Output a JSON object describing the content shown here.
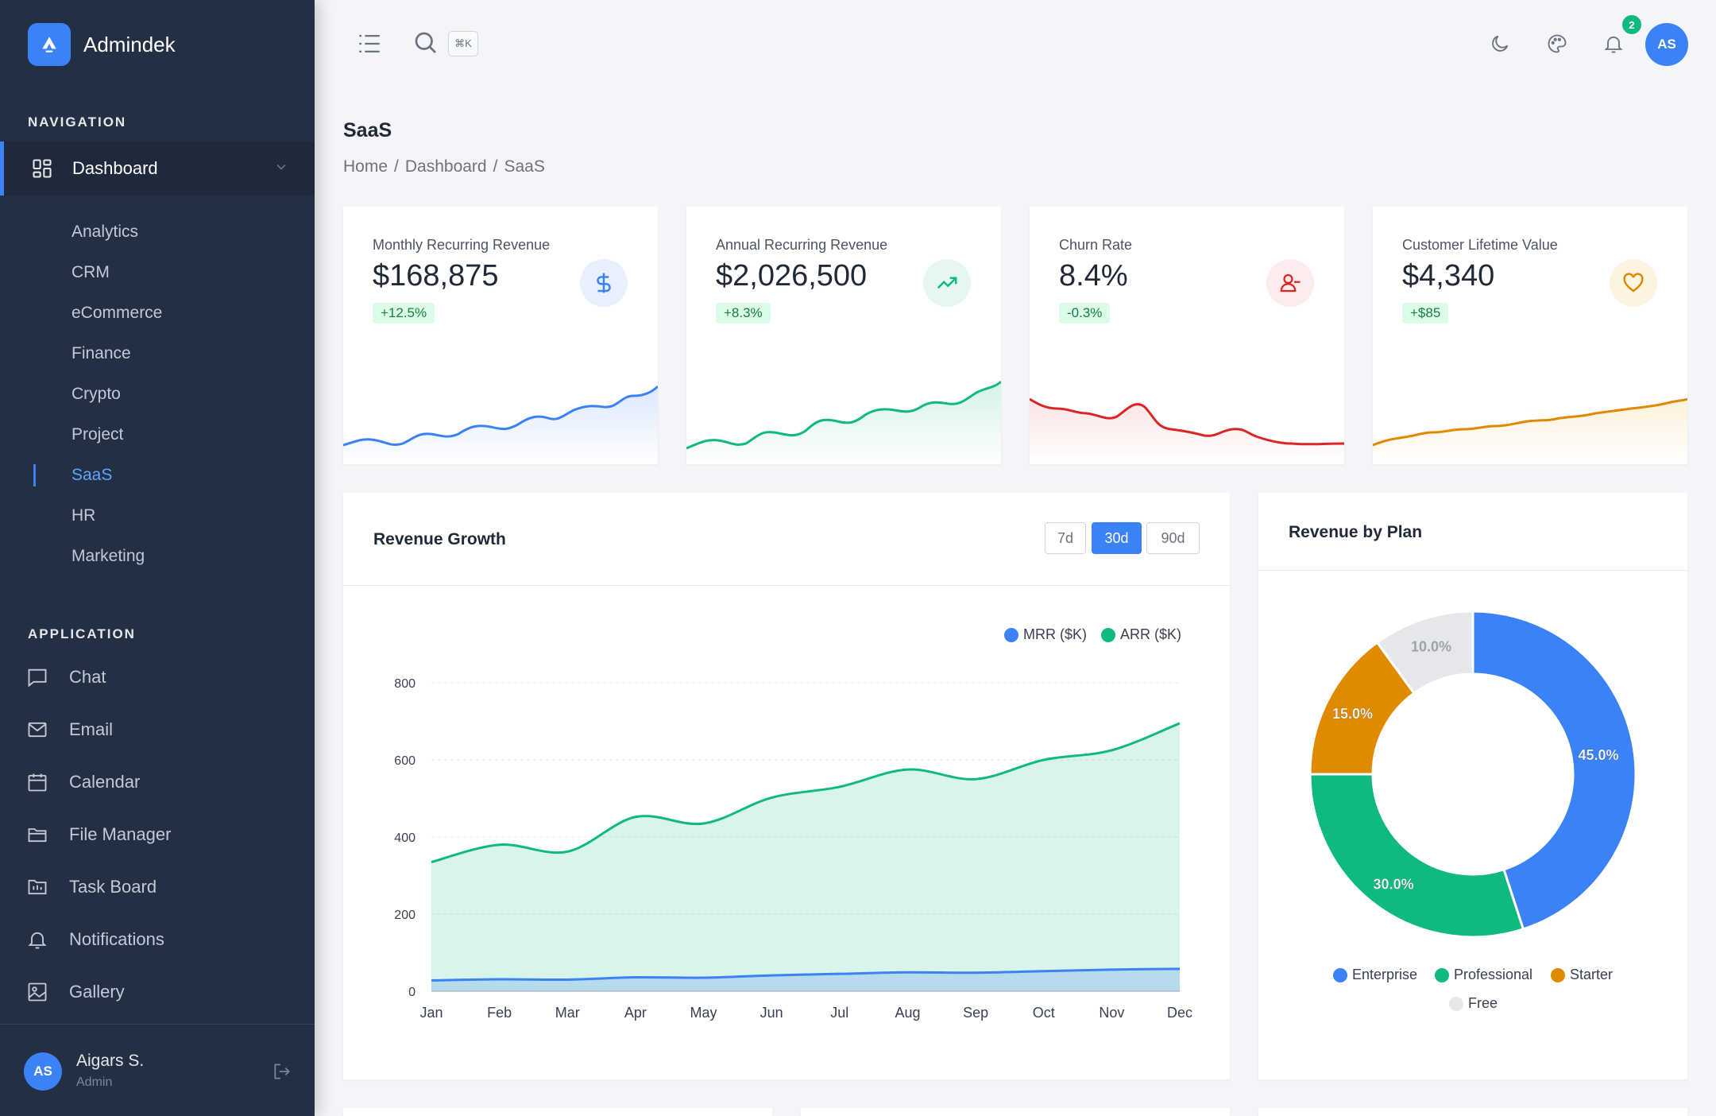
{
  "app": {
    "name": "Admindek"
  },
  "sidebar": {
    "nav_label": "NAVIGATION",
    "dashboard_label": "Dashboard",
    "sub_items": [
      "Analytics",
      "CRM",
      "eCommerce",
      "Finance",
      "Crypto",
      "Project",
      "SaaS",
      "HR",
      "Marketing"
    ],
    "active_sub": "SaaS",
    "app_label": "APPLICATION",
    "app_items": [
      {
        "label": "Chat",
        "icon": "chat-icon"
      },
      {
        "label": "Email",
        "icon": "mail-icon"
      },
      {
        "label": "Calendar",
        "icon": "calendar-icon"
      },
      {
        "label": "File Manager",
        "icon": "folder-icon"
      },
      {
        "label": "Task Board",
        "icon": "task-board-icon"
      },
      {
        "label": "Notifications",
        "icon": "bell-icon"
      },
      {
        "label": "Gallery",
        "icon": "image-icon"
      }
    ],
    "user": {
      "initials": "AS",
      "name": "Aigars S.",
      "role": "Admin"
    }
  },
  "topbar": {
    "shortcut": "⌘K",
    "notification_count": "2",
    "avatar_initials": "AS"
  },
  "page": {
    "title": "SaaS",
    "breadcrumb": [
      "Home",
      "Dashboard",
      "SaaS"
    ]
  },
  "stats": [
    {
      "label": "Monthly Recurring Revenue",
      "value": "$168,875",
      "change": "+12.5%",
      "color": "#3b82f6",
      "icon": "dollar-icon"
    },
    {
      "label": "Annual Recurring Revenue",
      "value": "$2,026,500",
      "change": "+8.3%",
      "color": "#10b981",
      "icon": "trending-up-icon"
    },
    {
      "label": "Churn Rate",
      "value": "8.4%",
      "change": "-0.3%",
      "color": "#dc2626",
      "icon": "user-minus-icon"
    },
    {
      "label": "Customer Lifetime Value",
      "value": "$4,340",
      "change": "+$85",
      "color": "#f59e0b",
      "icon": "heart-icon"
    }
  ],
  "revenue_growth": {
    "title": "Revenue Growth",
    "ranges": [
      "7d",
      "30d",
      "90d"
    ],
    "active_range": "30d"
  },
  "revenue_by_plan": {
    "title": "Revenue by Plan"
  },
  "chart_data": [
    {
      "type": "area",
      "categories": [
        "Jan",
        "Feb",
        "Mar",
        "Apr",
        "May",
        "Jun",
        "Jul",
        "Aug",
        "Sep",
        "Oct",
        "Nov",
        "Dec"
      ],
      "series": [
        {
          "name": "MRR ($K)",
          "color": "#3b82f6",
          "values": [
            28,
            31,
            30,
            36,
            35,
            41,
            45,
            49,
            48,
            52,
            56,
            58
          ]
        },
        {
          "name": "ARR ($K)",
          "color": "#10b981",
          "values": [
            335,
            380,
            362,
            452,
            435,
            502,
            530,
            575,
            550,
            600,
            625,
            695
          ]
        }
      ],
      "yticks": [
        0,
        200,
        400,
        600,
        800
      ],
      "ylim": [
        0,
        800
      ],
      "grid": true,
      "legend": "top-right"
    },
    {
      "type": "pie",
      "donut": true,
      "categories": [
        "Enterprise",
        "Professional",
        "Starter",
        "Free"
      ],
      "values": [
        45,
        30,
        15,
        10
      ],
      "labels": [
        "45.0%",
        "30.0%",
        "15.0%",
        "10.0%"
      ],
      "colors": [
        "#3b82f6",
        "#10b981",
        "#e08a00",
        "#e5e7eb"
      ],
      "legend": "bottom"
    }
  ]
}
